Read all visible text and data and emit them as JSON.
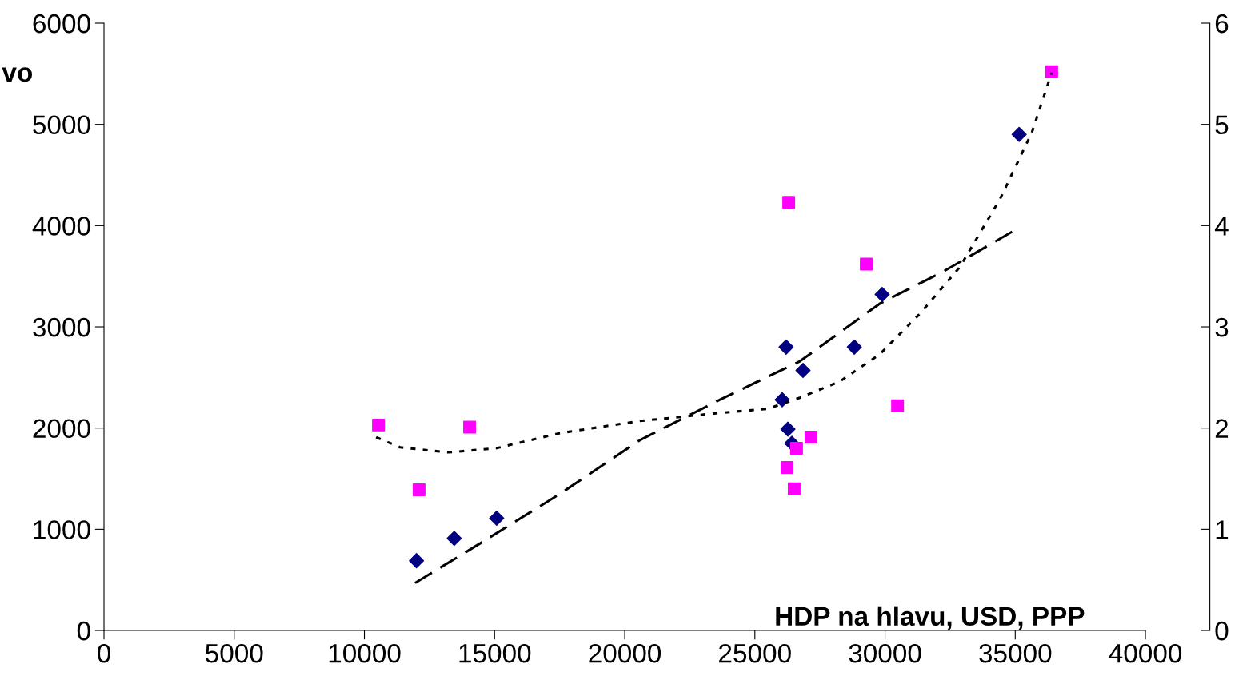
{
  "chart_data": {
    "type": "scatter",
    "xlabel": "HDP na hlavu, USD, PPP",
    "ylabel": "vo",
    "xlim": [
      0,
      40000
    ],
    "xticks": [
      0,
      5000,
      10000,
      15000,
      20000,
      25000,
      30000,
      35000,
      40000
    ],
    "ylim": [
      0,
      6000
    ],
    "yticks": [
      0,
      1000,
      2000,
      3000,
      4000,
      5000,
      6000
    ],
    "y2lim": [
      0,
      6
    ],
    "y2ticks": [
      0,
      1,
      2,
      3,
      4,
      5,
      6
    ],
    "grid": false,
    "series": [
      {
        "marker": "diamond",
        "color": "#000080",
        "x": [
          12000,
          13450,
          15080,
          26050,
          26200,
          26270,
          26420,
          26850,
          28820,
          29890,
          35150
        ],
        "values": [
          690,
          910,
          1110,
          2280,
          2800,
          1990,
          1850,
          2570,
          2800,
          3320,
          4900
        ]
      },
      {
        "marker": "square",
        "color": "#ff00ff",
        "axis": "y2",
        "x": [
          10540,
          12100,
          14040,
          26300,
          26240,
          26510,
          26600,
          27160,
          29280,
          30480,
          36400
        ],
        "values": [
          2.03,
          1.39,
          2.01,
          4.23,
          1.61,
          1.4,
          1.8,
          1.91,
          3.62,
          2.22,
          5.52
        ]
      },
      {
        "type": "line",
        "line_style": "dashed",
        "marker": "none",
        "color": "#000000",
        "x": [
          11950,
          14440,
          17510,
          20580,
          23660,
          26730,
          29800,
          32260,
          35020
        ],
        "values": [
          470,
          860,
          1350,
          1880,
          2280,
          2660,
          3230,
          3550,
          3960
        ]
      },
      {
        "type": "line",
        "line_style": "dotted",
        "marker": "none",
        "color": "#000000",
        "axis": "y2",
        "x": [
          10450,
          11370,
          13210,
          15050,
          17510,
          20580,
          23660,
          25500,
          26730,
          28260,
          29800,
          31340,
          32870,
          34410,
          35640,
          36400
        ],
        "values": [
          1.91,
          1.81,
          1.76,
          1.8,
          1.95,
          2.07,
          2.15,
          2.19,
          2.3,
          2.46,
          2.73,
          3.13,
          3.59,
          4.26,
          4.92,
          5.51
        ]
      }
    ]
  }
}
